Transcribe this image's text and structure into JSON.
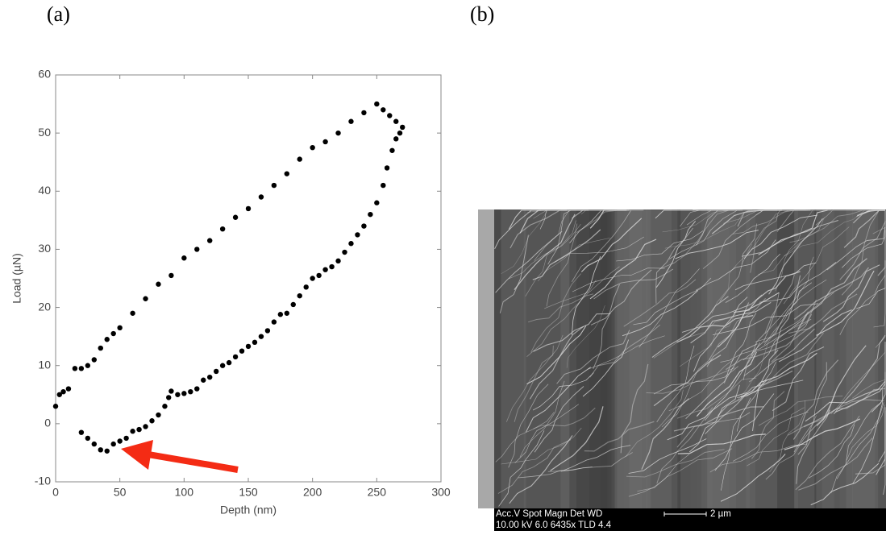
{
  "panel_labels": [
    "(a)",
    "(b)"
  ],
  "chart_data": {
    "type": "scatter",
    "x_label": "Depth (nm)",
    "y_label": "Load (µN)",
    "xlim": [
      0,
      300
    ],
    "ylim": [
      -10,
      60
    ],
    "xticks": [
      0,
      50,
      100,
      150,
      200,
      250,
      300
    ],
    "yticks": [
      -10,
      0,
      10,
      20,
      30,
      40,
      50,
      60
    ],
    "grid": false,
    "series": [
      {
        "color": "#000000",
        "x": [
          0,
          3,
          6,
          10,
          15,
          20,
          25,
          30,
          35,
          40,
          45,
          50,
          60,
          70,
          80,
          90,
          100,
          110,
          120,
          130,
          140,
          150,
          160,
          170,
          180,
          190,
          200,
          210,
          220,
          230,
          240,
          250,
          255,
          260,
          265,
          270
        ],
        "values": [
          3,
          5,
          5.5,
          6,
          9.5,
          9.5,
          10,
          11,
          13,
          14.5,
          15.5,
          16.5,
          19,
          21.5,
          24,
          25.5,
          28.5,
          30,
          31.5,
          33.5,
          35.5,
          37,
          39,
          41,
          43,
          45.5,
          47.5,
          48.5,
          50,
          52,
          53.5,
          55,
          54,
          53,
          52,
          51
        ]
      },
      {
        "color": "#000000",
        "x": [
          268,
          265,
          262,
          258,
          255,
          250,
          245,
          240,
          235,
          230,
          225,
          220,
          215,
          210,
          205,
          200,
          195,
          190,
          185,
          180,
          175,
          170,
          165,
          160,
          155,
          150,
          145,
          140,
          135,
          130,
          125,
          120,
          115,
          110,
          105,
          100,
          95,
          90,
          88,
          85,
          80,
          75,
          70,
          65,
          60,
          55,
          50,
          45,
          40,
          35,
          30,
          25,
          20
        ],
        "values": [
          50,
          49,
          47,
          44,
          41,
          38,
          36,
          34,
          32.5,
          31,
          29.5,
          28,
          27,
          26.5,
          25.5,
          25,
          23.5,
          22,
          20.5,
          19,
          18.8,
          17.5,
          16,
          15,
          14,
          13.3,
          12.5,
          11.5,
          10.5,
          10,
          9,
          8,
          7.5,
          6,
          5.5,
          5.2,
          5,
          5.6,
          4.5,
          3,
          1.5,
          0.5,
          -0.5,
          -1,
          -1.3,
          -2.5,
          -3,
          -3.5,
          -4.7,
          -4.5,
          -3.5,
          -2.5,
          -1.5
        ]
      }
    ]
  },
  "sem_image": {
    "info_header": "Acc.V     Spot  Magn    Det   WD",
    "info_values": "10.00 kV  6.0    6435x  TLD  4.4",
    "scale_bar": "2 µm"
  }
}
